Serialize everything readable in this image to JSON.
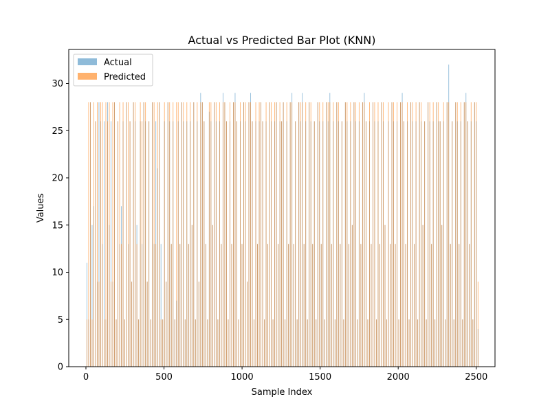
{
  "chart_data": {
    "type": "bar",
    "title": "Actual vs Predicted Bar Plot (KNN)",
    "xlabel": "Sample Index",
    "ylabel": "Values",
    "xlim": [
      -110,
      2620
    ],
    "ylim": [
      0,
      33.6
    ],
    "x_ticks": [
      0,
      500,
      1000,
      1500,
      2000,
      2500
    ],
    "y_ticks": [
      0,
      5,
      10,
      15,
      20,
      25,
      30
    ],
    "legend": {
      "placement": "top-left"
    },
    "grid": false,
    "n_samples": 2516,
    "series": [
      {
        "name": "Actual",
        "color": "#1f77b4",
        "alpha": 0.5,
        "values": [
          11,
          5,
          28,
          15,
          17,
          26,
          9,
          28,
          26,
          13,
          26,
          5,
          28,
          15,
          26,
          9,
          28,
          5,
          26,
          13,
          17,
          26,
          5,
          28,
          13,
          26,
          9,
          28,
          26,
          15,
          5,
          26,
          13,
          28,
          26,
          9,
          26,
          5,
          28,
          13,
          26,
          21,
          28,
          13,
          5,
          26,
          9,
          28,
          26,
          13,
          26,
          5,
          7,
          26,
          13,
          28,
          26,
          5,
          26,
          13,
          26,
          15,
          28,
          5,
          26,
          9,
          29,
          28,
          26,
          13,
          5,
          27,
          26,
          15,
          28,
          26,
          5,
          26,
          13,
          29,
          28,
          26,
          5,
          26,
          13,
          28,
          29,
          26,
          5,
          26,
          13,
          28,
          26,
          9,
          28,
          29,
          26,
          5,
          26,
          13,
          26,
          28,
          26,
          5,
          26,
          13,
          28,
          26,
          5,
          26,
          28,
          13,
          26,
          26,
          28,
          5,
          26,
          13,
          28,
          29,
          13,
          26,
          5,
          28,
          26,
          29,
          13,
          26,
          5,
          28,
          26,
          13,
          26,
          5,
          28,
          26,
          13,
          26,
          5,
          28,
          26,
          29,
          13,
          26,
          5,
          28,
          26,
          13,
          26,
          5,
          28,
          26,
          13,
          26,
          15,
          28,
          26,
          5,
          26,
          13,
          28,
          29,
          26,
          5,
          26,
          13,
          28,
          26,
          5,
          26,
          13,
          28,
          26,
          15,
          5,
          26,
          13,
          28,
          26,
          13,
          26,
          5,
          28,
          29,
          26,
          13,
          26,
          5,
          28,
          26,
          13,
          26,
          5,
          28,
          26,
          15,
          26,
          5,
          28,
          26,
          13,
          26,
          5,
          28,
          26,
          26,
          15,
          26,
          5,
          28,
          32,
          13,
          26,
          5,
          28,
          26,
          13,
          26,
          5,
          28,
          29,
          26,
          13,
          26,
          5,
          28,
          26,
          4
        ]
      },
      {
        "name": "Predicted",
        "color": "#ff7f0e",
        "alpha": 0.6,
        "values": [
          5,
          28,
          28,
          5,
          28,
          26,
          28,
          9,
          28,
          28,
          5,
          28,
          26,
          28,
          9,
          28,
          28,
          5,
          26,
          28,
          13,
          28,
          5,
          28,
          28,
          26,
          9,
          28,
          28,
          13,
          5,
          28,
          26,
          28,
          28,
          9,
          26,
          5,
          28,
          28,
          13,
          28,
          28,
          5,
          5,
          28,
          9,
          28,
          28,
          13,
          28,
          5,
          28,
          28,
          13,
          28,
          28,
          5,
          28,
          13,
          28,
          15,
          28,
          5,
          28,
          9,
          28,
          28,
          26,
          13,
          5,
          28,
          28,
          15,
          28,
          28,
          5,
          28,
          13,
          28,
          28,
          26,
          5,
          28,
          13,
          28,
          28,
          26,
          5,
          28,
          13,
          28,
          28,
          9,
          28,
          28,
          26,
          5,
          28,
          13,
          28,
          28,
          26,
          5,
          28,
          13,
          28,
          28,
          5,
          28,
          28,
          13,
          28,
          26,
          28,
          5,
          28,
          13,
          28,
          28,
          13,
          26,
          5,
          28,
          28,
          28,
          13,
          28,
          5,
          28,
          28,
          13,
          26,
          5,
          28,
          28,
          13,
          28,
          5,
          28,
          28,
          28,
          13,
          28,
          5,
          28,
          28,
          13,
          26,
          5,
          28,
          28,
          13,
          28,
          15,
          28,
          28,
          5,
          28,
          13,
          28,
          28,
          26,
          5,
          28,
          13,
          28,
          28,
          5,
          28,
          13,
          28,
          28,
          15,
          5,
          28,
          13,
          28,
          28,
          13,
          28,
          5,
          28,
          28,
          26,
          13,
          28,
          5,
          28,
          28,
          13,
          28,
          5,
          28,
          28,
          15,
          26,
          5,
          28,
          28,
          13,
          28,
          5,
          28,
          28,
          26,
          15,
          28,
          5,
          28,
          28,
          13,
          26,
          5,
          28,
          28,
          13,
          28,
          5,
          28,
          28,
          26,
          13,
          28,
          5,
          28,
          28,
          9
        ]
      }
    ]
  }
}
